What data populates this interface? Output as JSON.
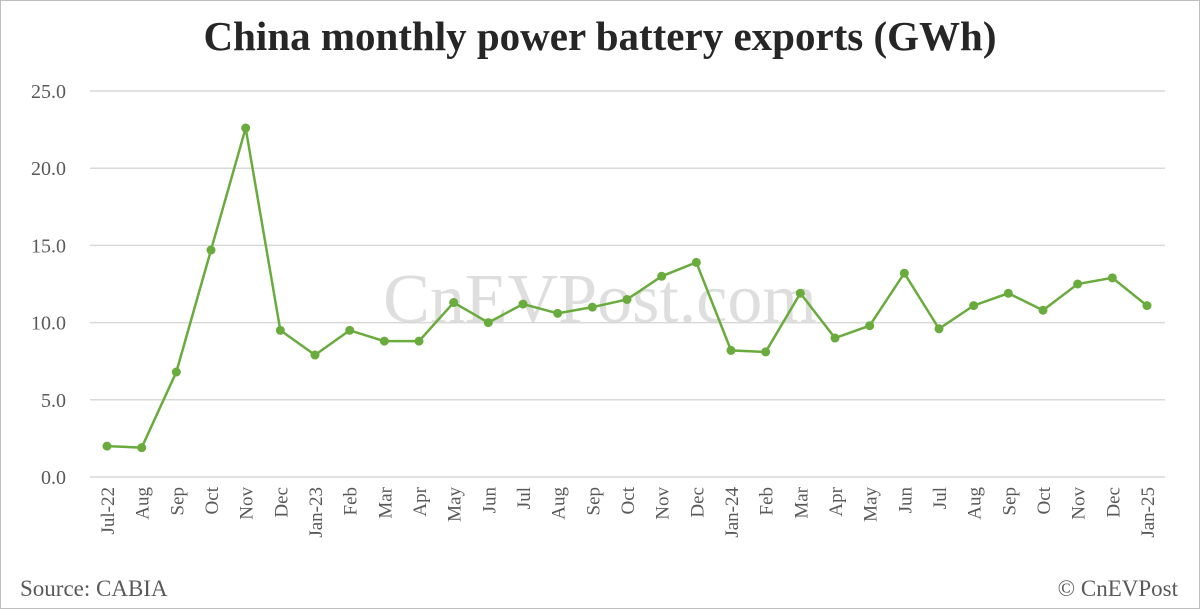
{
  "chart_data": {
    "type": "line",
    "title": "China monthly power battery exports (GWh)",
    "xlabel": "",
    "ylabel": "",
    "ylim": [
      0,
      25
    ],
    "yticks": [
      "0.0",
      "5.0",
      "10.0",
      "15.0",
      "20.0",
      "25.0"
    ],
    "grid": true,
    "legend": "none",
    "watermark": "CnEVPost.com",
    "line_color": "#6aab3d",
    "categories": [
      "Jul-22",
      "Aug",
      "Sep",
      "Oct",
      "Nov",
      "Dec",
      "Jan-23",
      "Feb",
      "Mar",
      "Apr",
      "May",
      "Jun",
      "Jul",
      "Aug",
      "Sep",
      "Oct",
      "Nov",
      "Dec",
      "Jan-24",
      "Feb",
      "Mar",
      "Apr",
      "May",
      "Jun",
      "Jul",
      "Aug",
      "Sep",
      "Oct",
      "Nov",
      "Dec",
      "Jan-25"
    ],
    "values": [
      2.0,
      1.9,
      6.8,
      14.7,
      22.6,
      9.5,
      7.9,
      9.5,
      8.8,
      8.8,
      11.3,
      10.0,
      11.2,
      10.6,
      11.0,
      11.5,
      13.0,
      13.9,
      8.2,
      8.1,
      11.9,
      9.0,
      9.8,
      13.2,
      9.6,
      11.1,
      11.9,
      10.8,
      12.5,
      12.9,
      11.1
    ]
  },
  "footer": {
    "source": "Source: CABIA",
    "copyright": "© CnEVPost"
  }
}
